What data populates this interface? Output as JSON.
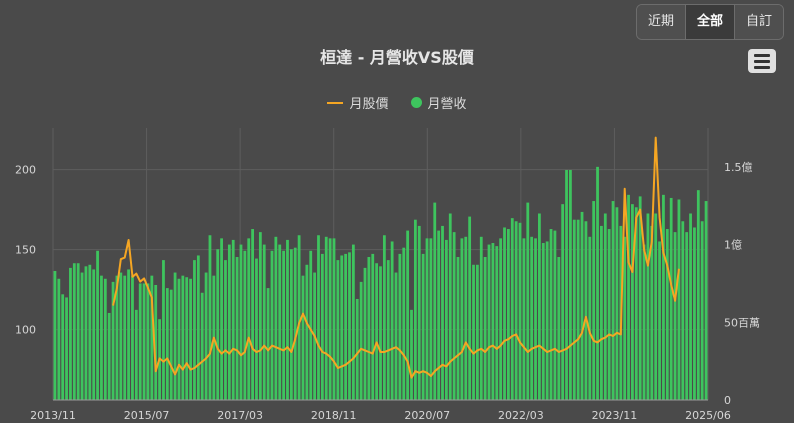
{
  "range_buttons": [
    "近期",
    "全部",
    "自訂"
  ],
  "active_range": 1,
  "title": "桓達 - 月營收VS股價",
  "legend": {
    "price": "月股價",
    "revenue": "月營收"
  },
  "colors": {
    "price": "#f5a623",
    "revenue": "#3ec45e",
    "grid": "#5e5e5e"
  },
  "chart_data": {
    "type": "bar+line",
    "x_ticks": [
      "2013/11",
      "2015/07",
      "2017/03",
      "2018/11",
      "2020/07",
      "2022/03",
      "2023/11",
      "2025/06"
    ],
    "y_left_ticks": [
      100,
      150,
      200
    ],
    "y_left_range": [
      56,
      226
    ],
    "y_right_ticks": [
      {
        "label": "0",
        "value": 0
      },
      {
        "label": "50百萬",
        "value": 50
      },
      {
        "label": "1億",
        "value": 100
      },
      {
        "label": "1.5億",
        "value": 150
      }
    ],
    "y_right_range": [
      0,
      175
    ],
    "series": [
      {
        "name": "月營收",
        "unit": "百萬",
        "values": [
          83,
          78,
          68,
          66,
          85,
          88,
          88,
          82,
          86,
          87,
          84,
          96,
          80,
          78,
          56,
          76,
          80,
          82,
          80,
          84,
          80,
          58,
          75,
          75,
          75,
          80,
          74,
          52,
          90,
          72,
          71,
          82,
          78,
          80,
          79,
          78,
          90,
          93,
          69,
          82,
          106,
          80,
          97,
          104,
          90,
          100,
          103,
          92,
          100,
          96,
          104,
          110,
          91,
          108,
          100,
          72,
          96,
          105,
          100,
          96,
          103,
          97,
          98,
          106,
          80,
          87,
          96,
          82,
          106,
          94,
          105,
          104,
          104,
          90,
          93,
          94,
          95,
          100,
          65,
          76,
          85,
          92,
          94,
          88,
          86,
          106,
          90,
          102,
          82,
          94,
          98,
          109,
          58,
          116,
          112,
          94,
          104,
          104,
          127,
          109,
          112,
          103,
          120,
          108,
          92,
          104,
          105,
          118,
          87,
          87,
          105,
          92,
          100,
          101,
          99,
          104,
          111,
          110,
          117,
          115,
          114,
          104,
          127,
          105,
          104,
          120,
          101,
          102,
          110,
          109,
          92,
          126,
          148,
          148,
          116,
          116,
          121,
          115,
          105,
          128,
          150,
          112,
          120,
          110,
          128,
          124,
          112,
          105,
          132,
          126,
          124,
          131,
          100,
          120,
          112,
          120,
          102,
          132,
          110,
          130,
          108,
          129,
          115,
          108,
          120,
          111,
          135,
          115,
          128
        ],
        "axis": "right"
      },
      {
        "name": "月股價",
        "unit": "元",
        "start_index": 15,
        "values": [
          115,
          126,
          144,
          145,
          156,
          133,
          135,
          130,
          132,
          126,
          120,
          74,
          82,
          80,
          82,
          77,
          72,
          78,
          75,
          79,
          75,
          76,
          78,
          80,
          82,
          85,
          95,
          88,
          85,
          87,
          85,
          88,
          87,
          84,
          86,
          95,
          88,
          86,
          87,
          90,
          87,
          90,
          89,
          88,
          87,
          89,
          86,
          94,
          104,
          110,
          104,
          100,
          96,
          90,
          86,
          85,
          83,
          80,
          76,
          77,
          78,
          80,
          82,
          85,
          88,
          87,
          86,
          85,
          92,
          86,
          86,
          87,
          88,
          89,
          87,
          84,
          80,
          70,
          74,
          73,
          74,
          73,
          71,
          74,
          76,
          78,
          77,
          80,
          82,
          84,
          86,
          92,
          88,
          85,
          87,
          88,
          86,
          89,
          90,
          88,
          90,
          93,
          94,
          96,
          97,
          92,
          89,
          86,
          88,
          89,
          90,
          88,
          86,
          87,
          88,
          86,
          87,
          88,
          90,
          92,
          94,
          98,
          108,
          98,
          93,
          92,
          94,
          95,
          97,
          96,
          98,
          97,
          188,
          142,
          136,
          170,
          175,
          150,
          140,
          155,
          220,
          170,
          148,
          140,
          128,
          118,
          138
        ]
      }
    ]
  }
}
